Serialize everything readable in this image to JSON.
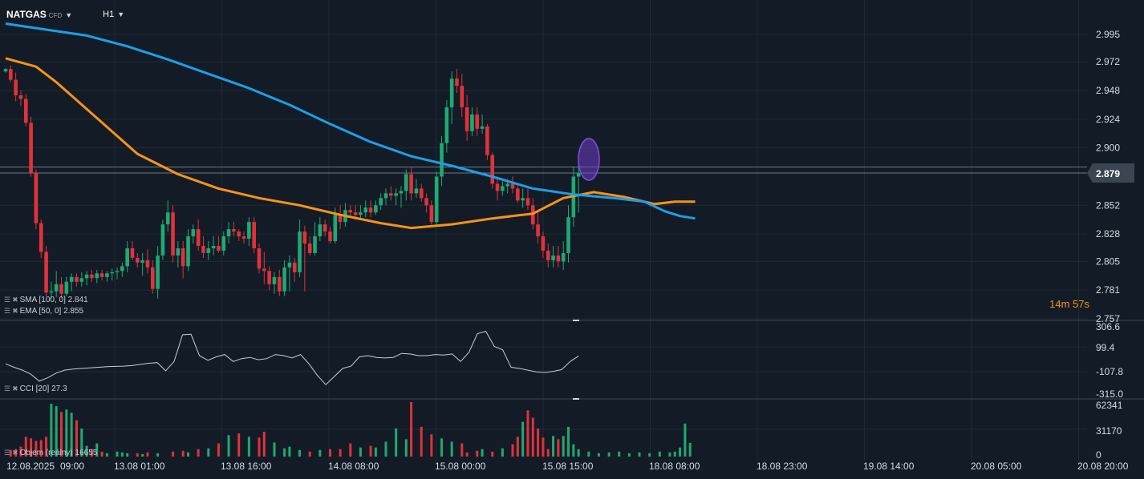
{
  "symbol": {
    "name": "NATGAS",
    "tag": "CFD"
  },
  "timeframe": "H1",
  "countdown": {
    "minutes": "14",
    "min_unit": "m",
    "seconds": "57",
    "sec_unit": "s"
  },
  "indicators": {
    "sma": "SMA [100, 0] 2.841",
    "ema": "EMA [50, 0] 2.855",
    "cci": "CCI [20] 27.3",
    "volume": "Objem (reálny) 16655"
  },
  "colors": {
    "up": "#1fa974",
    "down": "#e0323c",
    "sma": "#1e9ee8",
    "ema": "#f7931a",
    "cci_line": "#c8cdd3",
    "bg": "#131c26",
    "grid": "#1f2a35"
  },
  "icons": [
    "bars-icon",
    "close-icon",
    "caret-down-icon"
  ],
  "chart_data": {
    "type": "candlestick",
    "price_axis": {
      "ticks": [
        "2.995",
        "2.972",
        "2.948",
        "2.924",
        "2.900",
        "2.852",
        "2.828",
        "2.805",
        "2.781",
        "2.757"
      ],
      "min": 2.757,
      "max": 3.005
    },
    "current_price": "2.879",
    "hidden_price_label": "2.884",
    "x_labels": [
      "12.08.2025",
      "09:00",
      "13.08 01:00",
      "13.08 16:00",
      "14.08 08:00",
      "15.08 00:00",
      "15.08 15:00",
      "18.08 08:00",
      "18.08 23:00",
      "19.08 14:00",
      "20.08 05:00",
      "20.08 20:00"
    ],
    "candles": [
      [
        2.964,
        2.967,
        2.963,
        2.966
      ],
      [
        2.966,
        2.969,
        2.955,
        2.957
      ],
      [
        2.957,
        2.963,
        2.939,
        2.944
      ],
      [
        2.944,
        2.948,
        2.935,
        2.941
      ],
      [
        2.941,
        2.945,
        2.918,
        2.921
      ],
      [
        2.921,
        2.926,
        2.876,
        2.879
      ],
      [
        2.879,
        2.882,
        2.832,
        2.837
      ],
      [
        2.837,
        2.84,
        2.808,
        2.813
      ],
      [
        2.813,
        2.818,
        2.776,
        2.779
      ],
      [
        2.779,
        2.788,
        2.774,
        2.78
      ],
      [
        2.78,
        2.797,
        2.775,
        2.786
      ],
      [
        2.786,
        2.792,
        2.774,
        2.778
      ],
      [
        2.778,
        2.792,
        2.776,
        2.788
      ],
      [
        2.788,
        2.795,
        2.78,
        2.792
      ],
      [
        2.792,
        2.795,
        2.784,
        2.788
      ],
      [
        2.788,
        2.796,
        2.784,
        2.791
      ],
      [
        2.791,
        2.797,
        2.785,
        2.794
      ],
      [
        2.794,
        2.798,
        2.788,
        2.791
      ],
      [
        2.791,
        2.798,
        2.787,
        2.795
      ],
      [
        2.795,
        2.798,
        2.789,
        2.792
      ],
      [
        2.792,
        2.797,
        2.788,
        2.795
      ],
      [
        2.795,
        2.799,
        2.789,
        2.796
      ],
      [
        2.796,
        2.8,
        2.79,
        2.797
      ],
      [
        2.797,
        2.804,
        2.792,
        2.801
      ],
      [
        2.801,
        2.822,
        2.796,
        2.816
      ],
      [
        2.816,
        2.822,
        2.806,
        2.808
      ],
      [
        2.808,
        2.812,
        2.8,
        2.804
      ],
      [
        2.804,
        2.812,
        2.793,
        2.806
      ],
      [
        2.806,
        2.815,
        2.795,
        2.8
      ],
      [
        2.8,
        2.806,
        2.778,
        2.782
      ],
      [
        2.782,
        2.818,
        2.774,
        2.81
      ],
      [
        2.81,
        2.84,
        2.806,
        2.836
      ],
      [
        2.836,
        2.856,
        2.83,
        2.846
      ],
      [
        2.846,
        2.852,
        2.804,
        2.81
      ],
      [
        2.81,
        2.822,
        2.8,
        2.816
      ],
      [
        2.816,
        2.822,
        2.791,
        2.801
      ],
      [
        2.801,
        2.832,
        2.797,
        2.826
      ],
      [
        2.826,
        2.836,
        2.82,
        2.832
      ],
      [
        2.832,
        2.84,
        2.814,
        2.818
      ],
      [
        2.818,
        2.826,
        2.808,
        2.812
      ],
      [
        2.812,
        2.822,
        2.806,
        2.816
      ],
      [
        2.816,
        2.826,
        2.81,
        2.818
      ],
      [
        2.818,
        2.826,
        2.812,
        2.814
      ],
      [
        2.814,
        2.83,
        2.81,
        2.826
      ],
      [
        2.826,
        2.838,
        2.82,
        2.832
      ],
      [
        2.832,
        2.838,
        2.826,
        2.83
      ],
      [
        2.83,
        2.832,
        2.822,
        2.826
      ],
      [
        2.826,
        2.83,
        2.82,
        2.824
      ],
      [
        2.824,
        2.842,
        2.818,
        2.838
      ],
      [
        2.838,
        2.842,
        2.812,
        2.816
      ],
      [
        2.816,
        2.82,
        2.795,
        2.799
      ],
      [
        2.799,
        2.813,
        2.786,
        2.797
      ],
      [
        2.797,
        2.801,
        2.781,
        2.786
      ],
      [
        2.786,
        2.796,
        2.778,
        2.792
      ],
      [
        2.792,
        2.798,
        2.776,
        2.78
      ],
      [
        2.78,
        2.806,
        2.776,
        2.8
      ],
      [
        2.8,
        2.81,
        2.78,
        2.804
      ],
      [
        2.804,
        2.808,
        2.788,
        2.796
      ],
      [
        2.796,
        2.84,
        2.792,
        2.83
      ],
      [
        2.83,
        2.835,
        2.78,
        2.82
      ],
      [
        2.82,
        2.826,
        2.81,
        2.812
      ],
      [
        2.812,
        2.838,
        2.81,
        2.826
      ],
      [
        2.826,
        2.842,
        2.822,
        2.836
      ],
      [
        2.836,
        2.84,
        2.826,
        2.83
      ],
      [
        2.83,
        2.834,
        2.82,
        2.822
      ],
      [
        2.822,
        2.85,
        2.82,
        2.844
      ],
      [
        2.844,
        2.852,
        2.832,
        2.838
      ],
      [
        2.838,
        2.854,
        2.834,
        2.848
      ],
      [
        2.848,
        2.852,
        2.842,
        2.846
      ],
      [
        2.846,
        2.852,
        2.84,
        2.844
      ],
      [
        2.844,
        2.852,
        2.84,
        2.846
      ],
      [
        2.846,
        2.856,
        2.842,
        2.85
      ],
      [
        2.85,
        2.856,
        2.842,
        2.846
      ],
      [
        2.846,
        2.856,
        2.844,
        2.852
      ],
      [
        2.852,
        2.862,
        2.848,
        2.858
      ],
      [
        2.858,
        2.866,
        2.852,
        2.862
      ],
      [
        2.862,
        2.868,
        2.856,
        2.86
      ],
      [
        2.86,
        2.866,
        2.852,
        2.862
      ],
      [
        2.862,
        2.868,
        2.85,
        2.864
      ],
      [
        2.864,
        2.882,
        2.856,
        2.878
      ],
      [
        2.878,
        2.884,
        2.856,
        2.862
      ],
      [
        2.862,
        2.874,
        2.858,
        2.866
      ],
      [
        2.866,
        2.87,
        2.855,
        2.858
      ],
      [
        2.858,
        2.862,
        2.846,
        2.852
      ],
      [
        2.852,
        2.856,
        2.836,
        2.838
      ],
      [
        2.838,
        2.88,
        2.834,
        2.876
      ],
      [
        2.876,
        2.91,
        2.868,
        2.904
      ],
      [
        2.904,
        2.94,
        2.896,
        2.934
      ],
      [
        2.934,
        2.964,
        2.92,
        2.958
      ],
      [
        2.958,
        2.966,
        2.946,
        2.952
      ],
      [
        2.952,
        2.962,
        2.926,
        2.934
      ],
      [
        2.934,
        2.944,
        2.906,
        2.914
      ],
      [
        2.914,
        2.934,
        2.91,
        2.928
      ],
      [
        2.928,
        2.934,
        2.91,
        2.916
      ],
      [
        2.916,
        2.928,
        2.912,
        2.918
      ],
      [
        2.918,
        2.92,
        2.89,
        2.894
      ],
      [
        2.894,
        2.896,
        2.866,
        2.87
      ],
      [
        2.87,
        2.874,
        2.856,
        2.864
      ],
      [
        2.864,
        2.872,
        2.86,
        2.868
      ],
      [
        2.868,
        2.874,
        2.862,
        2.87
      ],
      [
        2.87,
        2.876,
        2.862,
        2.866
      ],
      [
        2.866,
        2.87,
        2.854,
        2.856
      ],
      [
        2.856,
        2.866,
        2.85,
        2.858
      ],
      [
        2.858,
        2.866,
        2.848,
        2.852
      ],
      [
        2.852,
        2.858,
        2.832,
        2.836
      ],
      [
        2.836,
        2.846,
        2.82,
        2.826
      ],
      [
        2.826,
        2.83,
        2.808,
        2.814
      ],
      [
        2.814,
        2.82,
        2.8,
        2.806
      ],
      [
        2.806,
        2.818,
        2.8,
        2.81
      ],
      [
        2.81,
        2.818,
        2.8,
        2.805
      ],
      [
        2.805,
        2.822,
        2.798,
        2.812
      ],
      [
        2.812,
        2.852,
        2.804,
        2.842
      ],
      [
        2.842,
        2.884,
        2.834,
        2.876
      ],
      [
        2.876,
        2.886,
        2.846,
        2.879
      ]
    ],
    "sma_line": [
      [
        0,
        3.004
      ],
      [
        8,
        2.999
      ],
      [
        16,
        2.994
      ],
      [
        24,
        2.985
      ],
      [
        32,
        2.974
      ],
      [
        40,
        2.962
      ],
      [
        48,
        2.95
      ],
      [
        56,
        2.936
      ],
      [
        64,
        2.92
      ],
      [
        72,
        2.905
      ],
      [
        80,
        2.893
      ],
      [
        88,
        2.885
      ],
      [
        96,
        2.876
      ],
      [
        104,
        2.866
      ],
      [
        112,
        2.861
      ],
      [
        120,
        2.858
      ],
      [
        126,
        2.855
      ],
      [
        130,
        2.847
      ],
      [
        133,
        2.843
      ],
      [
        136,
        2.841
      ]
    ],
    "ema_line": [
      [
        0,
        2.975
      ],
      [
        6,
        2.968
      ],
      [
        10,
        2.955
      ],
      [
        18,
        2.925
      ],
      [
        26,
        2.895
      ],
      [
        34,
        2.878
      ],
      [
        42,
        2.866
      ],
      [
        50,
        2.858
      ],
      [
        58,
        2.852
      ],
      [
        66,
        2.844
      ],
      [
        74,
        2.837
      ],
      [
        80,
        2.833
      ],
      [
        88,
        2.836
      ],
      [
        96,
        2.841
      ],
      [
        104,
        2.845
      ],
      [
        110,
        2.858
      ],
      [
        116,
        2.863
      ],
      [
        122,
        2.859
      ],
      [
        128,
        2.853
      ],
      [
        132,
        2.855
      ],
      [
        136,
        2.855
      ]
    ],
    "cci": {
      "ticks": [
        "306.6",
        "99.4",
        "-107.8",
        "-315.0"
      ],
      "min": -315.0,
      "max": 306.6,
      "values": [
        -40,
        -70,
        -95,
        -130,
        -190,
        -160,
        -120,
        -95,
        -85,
        -80,
        -75,
        -70,
        -65,
        -62,
        -60,
        -55,
        -45,
        -35,
        -30,
        -100,
        -20,
        210,
        215,
        30,
        -10,
        20,
        40,
        -20,
        5,
        15,
        -5,
        5,
        40,
        30,
        10,
        40,
        -40,
        -140,
        -220,
        -150,
        -80,
        -60,
        20,
        30,
        15,
        10,
        15,
        50,
        45,
        30,
        30,
        40,
        35,
        45,
        -20,
        60,
        220,
        240,
        110,
        80,
        -70,
        -80,
        -95,
        -110,
        -115,
        -105,
        -90,
        -20,
        27.3
      ]
    },
    "volume": {
      "ticks": [
        "62341",
        "31170",
        "0"
      ],
      "max": 66000,
      "bars": [
        [
          1,
          8000
        ],
        [
          2,
          9000
        ],
        [
          3,
          12000
        ],
        [
          4,
          24000
        ],
        [
          5,
          22000
        ],
        [
          6,
          19000
        ],
        [
          7,
          20000
        ],
        [
          8,
          24000
        ],
        [
          9,
          64000
        ],
        [
          10,
          61000
        ],
        [
          11,
          54000
        ],
        [
          12,
          57000
        ],
        [
          13,
          53000
        ],
        [
          14,
          44000
        ],
        [
          15,
          34000
        ],
        [
          16,
          13000
        ],
        [
          17,
          9000
        ],
        [
          18,
          16000
        ],
        [
          19,
          6000
        ],
        [
          20,
          4000
        ],
        [
          22,
          6000
        ],
        [
          23,
          5000
        ],
        [
          24,
          4000
        ],
        [
          26,
          4000
        ],
        [
          27,
          3000
        ],
        [
          28,
          5000
        ],
        [
          30,
          4000
        ],
        [
          33,
          6000
        ],
        [
          35,
          7000
        ],
        [
          36,
          5000
        ],
        [
          38,
          9000
        ],
        [
          40,
          10000
        ],
        [
          42,
          16000
        ],
        [
          44,
          26000
        ],
        [
          46,
          28000
        ],
        [
          48,
          24000
        ],
        [
          50,
          23000
        ],
        [
          51,
          30000
        ],
        [
          53,
          17000
        ],
        [
          55,
          10000
        ],
        [
          56,
          12000
        ],
        [
          58,
          8000
        ],
        [
          60,
          6000
        ],
        [
          62,
          8000
        ],
        [
          64,
          9000
        ],
        [
          66,
          9000
        ],
        [
          68,
          16000
        ],
        [
          70,
          11000
        ],
        [
          72,
          13000
        ],
        [
          73,
          11000
        ],
        [
          75,
          18000
        ],
        [
          77,
          34000
        ],
        [
          79,
          21000
        ],
        [
          80,
          66000
        ],
        [
          82,
          36000
        ],
        [
          84,
          27000
        ],
        [
          86,
          22000
        ],
        [
          88,
          18000
        ],
        [
          90,
          16000
        ],
        [
          91,
          5000
        ],
        [
          93,
          7000
        ],
        [
          94,
          9000
        ],
        [
          96,
          6000
        ],
        [
          98,
          10000
        ],
        [
          100,
          15000
        ],
        [
          101,
          24000
        ],
        [
          102,
          42000
        ],
        [
          103,
          56000
        ],
        [
          104,
          47000
        ],
        [
          105,
          34000
        ],
        [
          106,
          23000
        ],
        [
          107,
          9000
        ],
        [
          108,
          25000
        ],
        [
          109,
          21000
        ],
        [
          110,
          25000
        ],
        [
          111,
          36000
        ],
        [
          112,
          15000
        ],
        [
          113,
          9000
        ],
        [
          115,
          6000
        ],
        [
          117,
          4000
        ],
        [
          119,
          5000
        ],
        [
          121,
          6000
        ],
        [
          123,
          4000
        ],
        [
          125,
          5000
        ],
        [
          127,
          4000
        ],
        [
          129,
          6000
        ],
        [
          131,
          5000
        ],
        [
          132,
          6000
        ],
        [
          133,
          11000
        ],
        [
          134,
          40000
        ],
        [
          135,
          16655
        ]
      ]
    }
  }
}
